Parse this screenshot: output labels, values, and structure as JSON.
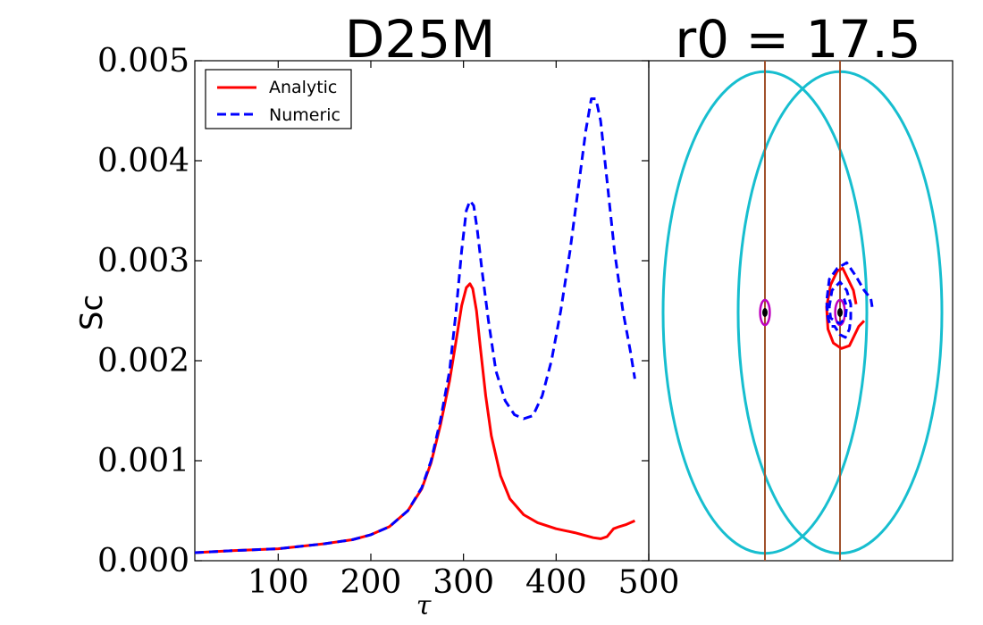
{
  "chart_data": [
    {
      "type": "line",
      "title": "D25M",
      "xlabel": "τ",
      "ylabel": "Sc",
      "xlim": [
        10,
        500
      ],
      "ylim": [
        0,
        0.005
      ],
      "xticks": [
        100,
        200,
        300,
        400,
        500
      ],
      "xtick_labels": [
        "100",
        "200",
        "300",
        "400",
        "500"
      ],
      "yticks": [
        0,
        0.001,
        0.002,
        0.003,
        0.004,
        0.005
      ],
      "ytick_labels": [
        "0.000",
        "0.001",
        "0.002",
        "0.003",
        "0.004",
        "0.005"
      ],
      "legend": {
        "location": "top-left"
      },
      "series": [
        {
          "name": "Analytic",
          "color": "#ff0000",
          "dash": "solid",
          "x": [
            10,
            50,
            100,
            150,
            180,
            200,
            220,
            240,
            255,
            265,
            275,
            285,
            292,
            298,
            303,
            307,
            310,
            314,
            318,
            324,
            330,
            340,
            350,
            365,
            380,
            400,
            420,
            440,
            448,
            455,
            462,
            468,
            475,
            485
          ],
          "y": [
            8e-05,
            0.0001,
            0.00012,
            0.00017,
            0.00021,
            0.00026,
            0.00034,
            0.0005,
            0.00072,
            0.00098,
            0.00135,
            0.0018,
            0.0022,
            0.00255,
            0.00273,
            0.00277,
            0.00272,
            0.0025,
            0.00215,
            0.00165,
            0.00125,
            0.00085,
            0.00062,
            0.00046,
            0.00038,
            0.00032,
            0.00028,
            0.00023,
            0.00022,
            0.00024,
            0.00032,
            0.00034,
            0.00036,
            0.0004
          ]
        },
        {
          "name": "Numeric",
          "color": "#0000ff",
          "dash": "dashed",
          "x": [
            10,
            50,
            100,
            150,
            180,
            200,
            220,
            240,
            255,
            265,
            275,
            285,
            292,
            298,
            303,
            307,
            311,
            315,
            320,
            327,
            335,
            345,
            355,
            365,
            375,
            385,
            395,
            405,
            415,
            425,
            432,
            438,
            443,
            448,
            455,
            463,
            472,
            480,
            485
          ],
          "y": [
            8e-05,
            0.0001,
            0.00012,
            0.00017,
            0.00021,
            0.00026,
            0.00034,
            0.0005,
            0.00073,
            0.001,
            0.0014,
            0.0019,
            0.0025,
            0.0031,
            0.0035,
            0.0036,
            0.00355,
            0.0033,
            0.0029,
            0.0024,
            0.0019,
            0.0016,
            0.00146,
            0.00142,
            0.00145,
            0.00165,
            0.002,
            0.0025,
            0.0031,
            0.0038,
            0.0043,
            0.00462,
            0.00462,
            0.0044,
            0.0038,
            0.0031,
            0.0025,
            0.0021,
            0.00182
          ]
        }
      ]
    },
    {
      "type": "line",
      "title": "r0 = 17.5",
      "axes_visible": false,
      "curves": [
        {
          "name": "outer-ellipse-left",
          "color": "#17becf",
          "kind": "ellipse",
          "center": [
            -1.4,
            0
          ],
          "radius": [
            3.8,
            8.7
          ]
        },
        {
          "name": "outer-ellipse-right",
          "color": "#17becf",
          "kind": "ellipse",
          "center": [
            1.4,
            0
          ],
          "radius": [
            3.8,
            8.7
          ]
        },
        {
          "name": "vertical-line-left",
          "color": "#a0522d",
          "kind": "vline",
          "x": -1.4
        },
        {
          "name": "vertical-line-right",
          "color": "#a0522d",
          "kind": "vline",
          "x": 1.4
        },
        {
          "name": "inner-ellipse-left",
          "color": "#bf00bf",
          "kind": "ellipse",
          "center": [
            -1.4,
            0
          ],
          "radius": [
            0.18,
            0.45
          ]
        },
        {
          "name": "inner-ellipse-right",
          "color": "#bf00bf",
          "kind": "ellipse",
          "center": [
            1.4,
            0
          ],
          "radius": [
            0.18,
            0.45
          ]
        },
        {
          "name": "center-point-left",
          "color": "#000000",
          "kind": "point",
          "center": [
            -1.4,
            0
          ]
        },
        {
          "name": "center-point-right",
          "color": "#000000",
          "kind": "point",
          "center": [
            1.4,
            0
          ]
        },
        {
          "name": "analytic-orbit",
          "color": "#ff0000",
          "dash": "solid",
          "kind": "path",
          "points": [
            [
              2.0,
              0.3
            ],
            [
              1.9,
              0.8
            ],
            [
              1.7,
              1.2
            ],
            [
              1.5,
              1.6
            ],
            [
              1.3,
              1.5
            ],
            [
              1.05,
              1.0
            ],
            [
              0.9,
              0.2
            ],
            [
              0.95,
              -0.6
            ],
            [
              1.15,
              -1.1
            ],
            [
              1.45,
              -1.3
            ],
            [
              1.75,
              -1.2
            ],
            [
              2.1,
              -0.5
            ],
            [
              2.3,
              -0.3
            ]
          ]
        },
        {
          "name": "numeric-orbit",
          "color": "#0000ff",
          "dash": "dashed",
          "kind": "path",
          "points": [
            [
              2.6,
              0.2
            ],
            [
              2.55,
              0.5
            ],
            [
              2.3,
              0.8
            ],
            [
              2.0,
              1.3
            ],
            [
              1.65,
              1.8
            ],
            [
              1.3,
              1.6
            ],
            [
              1.0,
              1.2
            ],
            [
              0.9,
              0.4
            ],
            [
              0.95,
              -0.2
            ],
            [
              1.05,
              -0.5
            ],
            [
              1.2,
              -0.5
            ],
            [
              1.4,
              -0.8
            ],
            [
              1.6,
              -0.9
            ],
            [
              1.75,
              -0.6
            ],
            [
              1.8,
              -0.2
            ],
            [
              1.8,
              0.3
            ],
            [
              1.65,
              0.8
            ],
            [
              1.4,
              1.1
            ],
            [
              1.1,
              0.8
            ],
            [
              1.0,
              0.2
            ],
            [
              1.05,
              -0.2
            ],
            [
              1.2,
              -0.3
            ],
            [
              1.4,
              -0.4
            ],
            [
              1.6,
              -0.2
            ],
            [
              1.65,
              0.2
            ],
            [
              1.55,
              0.5
            ]
          ]
        }
      ]
    }
  ]
}
